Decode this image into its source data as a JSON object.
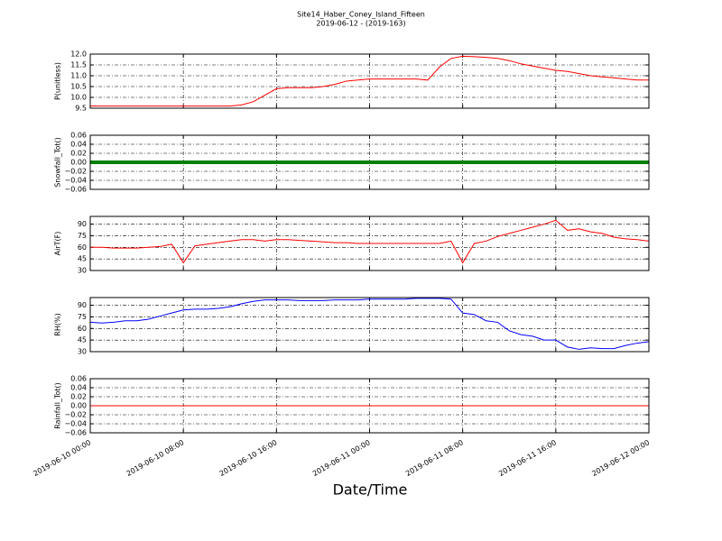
{
  "chart_data": [
    {
      "type": "line",
      "title": "Site14_Haber_Coney_Island_Fifteen",
      "subtitle": "2019-06-12 - (2019-163)",
      "ylabel": "P(unitless)",
      "x": [
        "2019-06-10 00:00",
        "2019-06-10 01:00",
        "2019-06-10 02:00",
        "2019-06-10 03:00",
        "2019-06-10 04:00",
        "2019-06-10 05:00",
        "2019-06-10 06:00",
        "2019-06-10 07:00",
        "2019-06-10 08:00",
        "2019-06-10 09:00",
        "2019-06-10 10:00",
        "2019-06-10 11:00",
        "2019-06-10 12:00",
        "2019-06-10 13:00",
        "2019-06-10 14:00",
        "2019-06-10 15:00",
        "2019-06-10 16:00",
        "2019-06-10 17:00",
        "2019-06-10 18:00",
        "2019-06-10 19:00",
        "2019-06-10 20:00",
        "2019-06-10 21:00",
        "2019-06-10 22:00",
        "2019-06-10 23:00",
        "2019-06-11 00:00",
        "2019-06-11 01:00",
        "2019-06-11 02:00",
        "2019-06-11 03:00",
        "2019-06-11 04:00",
        "2019-06-11 05:00",
        "2019-06-11 06:00",
        "2019-06-11 07:00",
        "2019-06-11 08:00",
        "2019-06-11 09:00",
        "2019-06-11 10:00",
        "2019-06-11 11:00",
        "2019-06-11 12:00",
        "2019-06-11 13:00",
        "2019-06-11 14:00",
        "2019-06-11 15:00",
        "2019-06-11 16:00",
        "2019-06-11 17:00",
        "2019-06-11 18:00",
        "2019-06-11 19:00",
        "2019-06-11 20:00",
        "2019-06-11 21:00",
        "2019-06-11 22:00",
        "2019-06-11 23:00",
        "2019-06-12 00:00"
      ],
      "values": [
        9.6,
        9.6,
        9.6,
        9.6,
        9.6,
        9.6,
        9.6,
        9.6,
        9.6,
        9.6,
        9.6,
        9.6,
        9.6,
        9.65,
        9.8,
        10.1,
        10.4,
        10.45,
        10.45,
        10.45,
        10.5,
        10.6,
        10.75,
        10.8,
        10.85,
        10.85,
        10.85,
        10.85,
        10.85,
        10.8,
        11.4,
        11.8,
        11.9,
        11.88,
        11.85,
        11.8,
        11.7,
        11.55,
        11.45,
        11.35,
        11.25,
        11.2,
        11.1,
        11.0,
        10.95,
        10.9,
        10.85,
        10.8,
        10.8
      ],
      "color": "#ff0000",
      "line_width": 1,
      "xlim": [
        "2019-06-10 00:00",
        "2019-06-12 00:00"
      ],
      "xticks": [
        "2019-06-10 00:00",
        "2019-06-10 08:00",
        "2019-06-10 16:00",
        "2019-06-11 00:00",
        "2019-06-11 08:00",
        "2019-06-11 16:00",
        "2019-06-12 00:00"
      ],
      "ylim": [
        9.5,
        12.0
      ],
      "yticks": [
        9.5,
        {
          "value": 10.0,
          "label": "10.0"
        },
        10.5,
        {
          "value": 11.0,
          "label": "11.0"
        },
        11.5,
        {
          "value": 12.0,
          "label": "12.0"
        }
      ],
      "grid": true
    },
    {
      "type": "line",
      "ylabel": "Snowfall_Tot()",
      "x": [
        "2019-06-10 00:00",
        "2019-06-10 01:00",
        "2019-06-10 02:00",
        "2019-06-10 03:00",
        "2019-06-10 04:00",
        "2019-06-10 05:00",
        "2019-06-10 06:00",
        "2019-06-10 07:00",
        "2019-06-10 08:00",
        "2019-06-10 09:00",
        "2019-06-10 10:00",
        "2019-06-10 11:00",
        "2019-06-10 12:00",
        "2019-06-10 13:00",
        "2019-06-10 14:00",
        "2019-06-10 15:00",
        "2019-06-10 16:00",
        "2019-06-10 17:00",
        "2019-06-10 18:00",
        "2019-06-10 19:00",
        "2019-06-10 20:00",
        "2019-06-10 21:00",
        "2019-06-10 22:00",
        "2019-06-10 23:00",
        "2019-06-11 00:00",
        "2019-06-11 01:00",
        "2019-06-11 02:00",
        "2019-06-11 03:00",
        "2019-06-11 04:00",
        "2019-06-11 05:00",
        "2019-06-11 06:00",
        "2019-06-11 07:00",
        "2019-06-11 08:00",
        "2019-06-11 09:00",
        "2019-06-11 10:00",
        "2019-06-11 11:00",
        "2019-06-11 12:00",
        "2019-06-11 13:00",
        "2019-06-11 14:00",
        "2019-06-11 15:00",
        "2019-06-11 16:00",
        "2019-06-11 17:00",
        "2019-06-11 18:00",
        "2019-06-11 19:00",
        "2019-06-11 20:00",
        "2019-06-11 21:00",
        "2019-06-11 22:00",
        "2019-06-11 23:00",
        "2019-06-12 00:00"
      ],
      "values": [
        0,
        0,
        0,
        0,
        0,
        0,
        0,
        0,
        0,
        0,
        0,
        0,
        0,
        0,
        0,
        0,
        0,
        0,
        0,
        0,
        0,
        0,
        0,
        0,
        0,
        0,
        0,
        0,
        0,
        0,
        0,
        0,
        0,
        0,
        0,
        0,
        0,
        0,
        0,
        0,
        0,
        0,
        0,
        0,
        0,
        0,
        0,
        0,
        0
      ],
      "color": "#007f00",
      "line_width": 4,
      "xlim": [
        "2019-06-10 00:00",
        "2019-06-12 00:00"
      ],
      "xticks": [
        "2019-06-10 00:00",
        "2019-06-10 08:00",
        "2019-06-10 16:00",
        "2019-06-11 00:00",
        "2019-06-11 08:00",
        "2019-06-11 16:00",
        "2019-06-12 00:00"
      ],
      "ylim": [
        -0.06,
        0.06
      ],
      "yticks": [
        {
          "value": -0.06,
          "label": "−0.06"
        },
        {
          "value": -0.04,
          "label": "−0.04"
        },
        {
          "value": -0.02,
          "label": "−0.02"
        },
        {
          "value": 0,
          "label": "0.00"
        },
        0.02,
        0.04,
        0.06
      ],
      "grid": true
    },
    {
      "type": "line",
      "ylabel": "AirT(F)",
      "x": [
        "2019-06-10 00:00",
        "2019-06-10 01:00",
        "2019-06-10 02:00",
        "2019-06-10 03:00",
        "2019-06-10 04:00",
        "2019-06-10 05:00",
        "2019-06-10 06:00",
        "2019-06-10 07:00",
        "2019-06-10 08:00",
        "2019-06-10 09:00",
        "2019-06-10 10:00",
        "2019-06-10 11:00",
        "2019-06-10 12:00",
        "2019-06-10 13:00",
        "2019-06-10 14:00",
        "2019-06-10 15:00",
        "2019-06-10 16:00",
        "2019-06-10 17:00",
        "2019-06-10 18:00",
        "2019-06-10 19:00",
        "2019-06-10 20:00",
        "2019-06-10 21:00",
        "2019-06-10 22:00",
        "2019-06-10 23:00",
        "2019-06-11 00:00",
        "2019-06-11 01:00",
        "2019-06-11 02:00",
        "2019-06-11 03:00",
        "2019-06-11 04:00",
        "2019-06-11 05:00",
        "2019-06-11 06:00",
        "2019-06-11 07:00",
        "2019-06-11 08:00",
        "2019-06-11 09:00",
        "2019-06-11 10:00",
        "2019-06-11 11:00",
        "2019-06-11 12:00",
        "2019-06-11 13:00",
        "2019-06-11 14:00",
        "2019-06-11 15:00",
        "2019-06-11 16:00",
        "2019-06-11 17:00",
        "2019-06-11 18:00",
        "2019-06-11 19:00",
        "2019-06-11 20:00",
        "2019-06-11 21:00",
        "2019-06-11 22:00",
        "2019-06-11 23:00",
        "2019-06-12 00:00"
      ],
      "values": [
        60,
        60,
        59,
        59,
        59,
        60,
        61,
        64,
        40,
        62,
        64,
        66,
        68,
        70,
        70,
        68,
        70,
        70,
        69,
        68,
        67,
        66,
        66,
        65,
        65,
        65,
        65,
        65,
        65,
        65,
        65,
        68,
        40,
        65,
        68,
        74,
        78,
        82,
        86,
        90,
        95,
        82,
        84,
        80,
        78,
        73,
        71,
        70,
        68
      ],
      "color": "#ff0000",
      "line_width": 1,
      "xlim": [
        "2019-06-10 00:00",
        "2019-06-12 00:00"
      ],
      "xticks": [
        "2019-06-10 00:00",
        "2019-06-10 08:00",
        "2019-06-10 16:00",
        "2019-06-11 00:00",
        "2019-06-11 08:00",
        "2019-06-11 16:00",
        "2019-06-12 00:00"
      ],
      "ylim": [
        30,
        100
      ],
      "yticks": [
        30,
        45,
        60,
        75,
        90
      ],
      "grid": true
    },
    {
      "type": "line",
      "ylabel": "RH(%)",
      "x": [
        "2019-06-10 00:00",
        "2019-06-10 01:00",
        "2019-06-10 02:00",
        "2019-06-10 03:00",
        "2019-06-10 04:00",
        "2019-06-10 05:00",
        "2019-06-10 06:00",
        "2019-06-10 07:00",
        "2019-06-10 08:00",
        "2019-06-10 09:00",
        "2019-06-10 10:00",
        "2019-06-10 11:00",
        "2019-06-10 12:00",
        "2019-06-10 13:00",
        "2019-06-10 14:00",
        "2019-06-10 15:00",
        "2019-06-10 16:00",
        "2019-06-10 17:00",
        "2019-06-10 18:00",
        "2019-06-10 19:00",
        "2019-06-10 20:00",
        "2019-06-10 21:00",
        "2019-06-10 22:00",
        "2019-06-10 23:00",
        "2019-06-11 00:00",
        "2019-06-11 01:00",
        "2019-06-11 02:00",
        "2019-06-11 03:00",
        "2019-06-11 04:00",
        "2019-06-11 05:00",
        "2019-06-11 06:00",
        "2019-06-11 07:00",
        "2019-06-11 08:00",
        "2019-06-11 09:00",
        "2019-06-11 10:00",
        "2019-06-11 11:00",
        "2019-06-11 12:00",
        "2019-06-11 13:00",
        "2019-06-11 14:00",
        "2019-06-11 15:00",
        "2019-06-11 16:00",
        "2019-06-11 17:00",
        "2019-06-11 18:00",
        "2019-06-11 19:00",
        "2019-06-11 20:00",
        "2019-06-11 21:00",
        "2019-06-11 22:00",
        "2019-06-11 23:00",
        "2019-06-12 00:00"
      ],
      "values": [
        68,
        67,
        68,
        70,
        70,
        72,
        76,
        80,
        84,
        85,
        85,
        86,
        88,
        92,
        95,
        97,
        97,
        97,
        96,
        96,
        96,
        97,
        97,
        97,
        98,
        98,
        98,
        98,
        99,
        99,
        99,
        98,
        80,
        78,
        70,
        68,
        57,
        52,
        50,
        45,
        45,
        36,
        33,
        35,
        34,
        34,
        38,
        41,
        43
      ],
      "color": "#0000ff",
      "line_width": 1,
      "xlim": [
        "2019-06-10 00:00",
        "2019-06-12 00:00"
      ],
      "xticks": [
        "2019-06-10 00:00",
        "2019-06-10 08:00",
        "2019-06-10 16:00",
        "2019-06-11 00:00",
        "2019-06-11 08:00",
        "2019-06-11 16:00",
        "2019-06-12 00:00"
      ],
      "ylim": [
        30,
        100
      ],
      "yticks": [
        30,
        45,
        60,
        75,
        90
      ],
      "grid": true
    },
    {
      "type": "line",
      "ylabel": "Rainfall_Tot()",
      "xlabel": "Date/Time",
      "x": [
        "2019-06-10 00:00",
        "2019-06-10 01:00",
        "2019-06-10 02:00",
        "2019-06-10 03:00",
        "2019-06-10 04:00",
        "2019-06-10 05:00",
        "2019-06-10 06:00",
        "2019-06-10 07:00",
        "2019-06-10 08:00",
        "2019-06-10 09:00",
        "2019-06-10 10:00",
        "2019-06-10 11:00",
        "2019-06-10 12:00",
        "2019-06-10 13:00",
        "2019-06-10 14:00",
        "2019-06-10 15:00",
        "2019-06-10 16:00",
        "2019-06-10 17:00",
        "2019-06-10 18:00",
        "2019-06-10 19:00",
        "2019-06-10 20:00",
        "2019-06-10 21:00",
        "2019-06-10 22:00",
        "2019-06-10 23:00",
        "2019-06-11 00:00",
        "2019-06-11 01:00",
        "2019-06-11 02:00",
        "2019-06-11 03:00",
        "2019-06-11 04:00",
        "2019-06-11 05:00",
        "2019-06-11 06:00",
        "2019-06-11 07:00",
        "2019-06-11 08:00",
        "2019-06-11 09:00",
        "2019-06-11 10:00",
        "2019-06-11 11:00",
        "2019-06-11 12:00",
        "2019-06-11 13:00",
        "2019-06-11 14:00",
        "2019-06-11 15:00",
        "2019-06-11 16:00",
        "2019-06-11 17:00",
        "2019-06-11 18:00",
        "2019-06-11 19:00",
        "2019-06-11 20:00",
        "2019-06-11 21:00",
        "2019-06-11 22:00",
        "2019-06-11 23:00",
        "2019-06-12 00:00"
      ],
      "values": [
        0,
        0,
        0,
        0,
        0,
        0,
        0,
        0,
        0,
        0,
        0,
        0,
        0,
        0,
        0,
        0,
        0,
        0,
        0,
        0,
        0,
        0,
        0,
        0,
        0,
        0,
        0,
        0,
        0,
        0,
        0,
        0,
        0,
        0,
        0,
        0,
        0,
        0,
        0,
        0,
        0,
        0,
        0,
        0,
        0,
        0,
        0,
        0,
        0
      ],
      "color": "#ff0000",
      "line_width": 1,
      "xlim": [
        "2019-06-10 00:00",
        "2019-06-12 00:00"
      ],
      "xticks": [
        "2019-06-10 00:00",
        "2019-06-10 08:00",
        "2019-06-10 16:00",
        "2019-06-11 00:00",
        "2019-06-11 08:00",
        "2019-06-11 16:00",
        "2019-06-12 00:00"
      ],
      "ylim": [
        -0.06,
        0.06
      ],
      "yticks": [
        {
          "value": -0.06,
          "label": "−0.06"
        },
        {
          "value": -0.04,
          "label": "−0.04"
        },
        {
          "value": -0.02,
          "label": "−0.02"
        },
        {
          "value": 0,
          "label": "0.00"
        },
        0.02,
        0.04,
        0.06
      ],
      "grid": true
    }
  ]
}
